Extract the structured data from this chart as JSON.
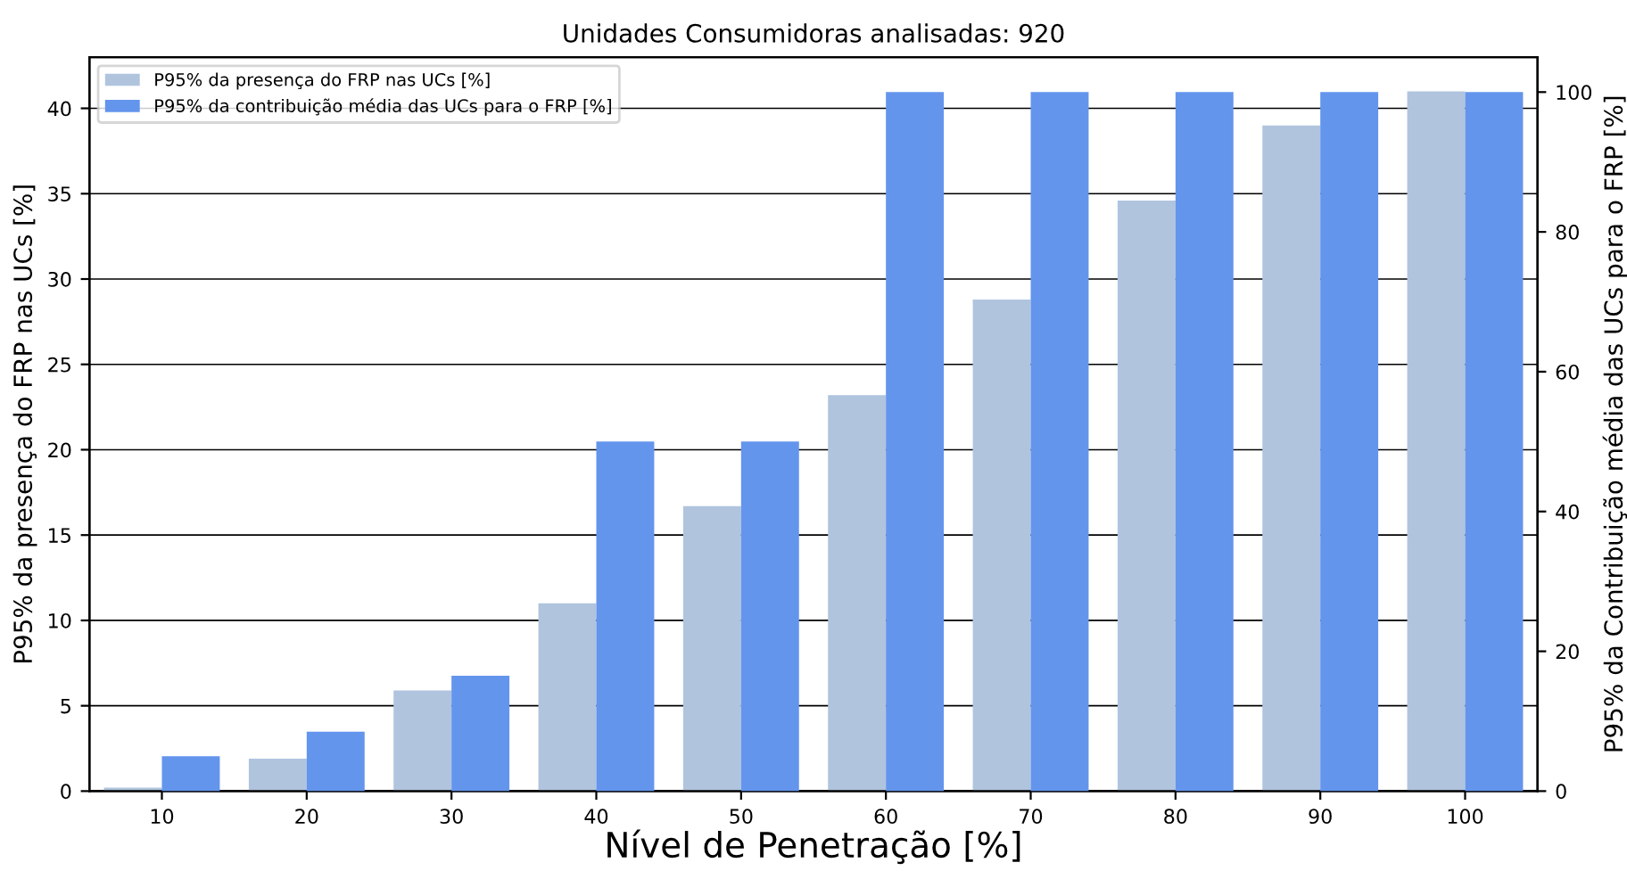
{
  "chart_data": {
    "type": "bar",
    "title": "Unidades Consumidoras analisadas: 920",
    "xlabel": "Nível de Penetração [%]",
    "ylabel": "P95% da presença do FRP nas UCs [%]",
    "y2label": "P95% da Contribuição média das UCs para o FRP [%]",
    "categories": [
      "10",
      "20",
      "30",
      "40",
      "50",
      "60",
      "70",
      "80",
      "90",
      "100"
    ],
    "series": [
      {
        "name": "P95% da presença do FRP nas UCs [%]",
        "color": "#b0c4de",
        "values": [
          0.2,
          1.9,
          5.9,
          11.0,
          16.7,
          23.2,
          28.8,
          34.6,
          39.0,
          41.0
        ]
      },
      {
        "name": "P95% da contribuição média das UCs para o FRP [%]",
        "color": "#6495ed",
        "axis": "y2",
        "values": [
          5,
          8.5,
          16.5,
          50,
          50,
          100,
          100,
          100,
          100,
          100
        ]
      }
    ],
    "ylim": [
      0,
      43
    ],
    "yticks": [
      0,
      5,
      10,
      15,
      20,
      25,
      30,
      35,
      40
    ],
    "y2lim": [
      0,
      105
    ],
    "y2ticks": [
      0,
      20,
      40,
      60,
      80,
      100
    ],
    "grid": "y",
    "legend": "top left"
  }
}
